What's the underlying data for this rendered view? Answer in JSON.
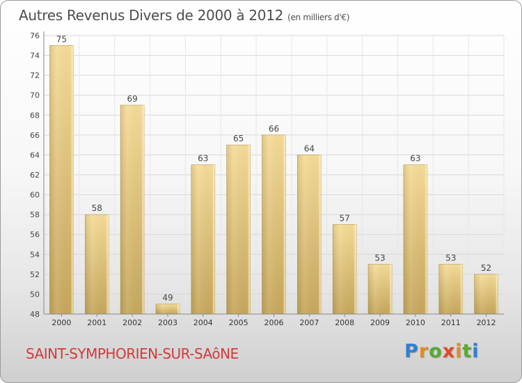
{
  "header": {
    "title": "Autres Revenus Divers de 2000 à 2012",
    "unit": "(en milliers d'€)"
  },
  "footer": {
    "commune": "SAINT-SYMPHORIEN-SUR-SAôNE",
    "brand": "Proxiti"
  },
  "colors": {
    "bar_light": "#f6dc98",
    "bar_dark": "#c8aa5e",
    "commune_text": "#d23a3a",
    "title_text": "#4d4d4d"
  },
  "chart_data": {
    "type": "bar",
    "title": "Autres Revenus Divers de 2000 à 2012",
    "subtitle": "(en milliers d'€)",
    "categories": [
      "2000",
      "2001",
      "2002",
      "2003",
      "2004",
      "2005",
      "2006",
      "2007",
      "2008",
      "2009",
      "2010",
      "2011",
      "2012"
    ],
    "values": [
      75,
      58,
      69,
      49,
      63,
      65,
      66,
      64,
      57,
      53,
      63,
      53,
      52
    ],
    "ylim": [
      48,
      76
    ],
    "yticks": [
      48,
      50,
      52,
      54,
      56,
      58,
      60,
      62,
      64,
      66,
      68,
      70,
      72,
      74,
      76
    ],
    "grid": true,
    "legend": "none"
  }
}
